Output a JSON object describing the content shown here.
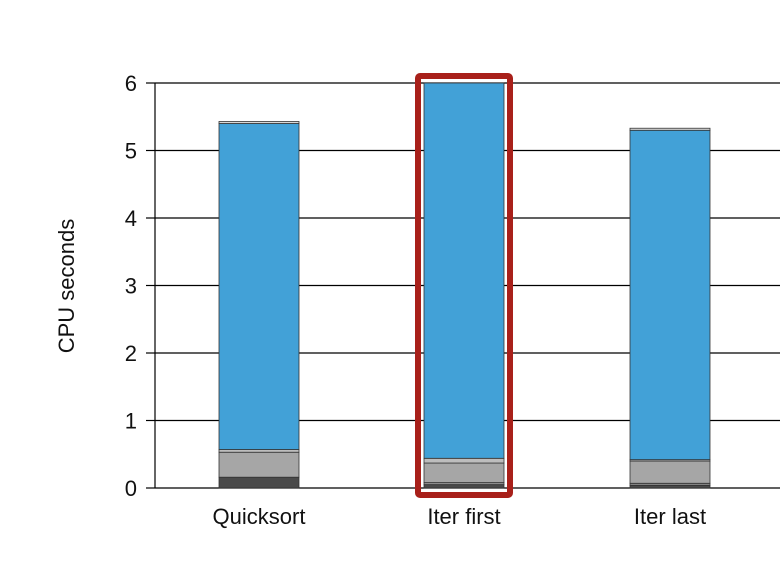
{
  "chart_data": {
    "type": "bar",
    "stacked": true,
    "ylabel": "CPU seconds",
    "xlabel": "",
    "ylim": [
      0,
      6
    ],
    "yticks": [
      "0",
      "1",
      "2",
      "3",
      "4",
      "5",
      "6"
    ],
    "grid": "horizontal",
    "categories": [
      "Quicksort",
      "Iter first",
      "Iter last"
    ],
    "highlighted_category": "Iter first",
    "highlight_color": "#a8201a",
    "series": [
      {
        "color": "#4a4a4a",
        "values": [
          0.16,
          0.05,
          0.04
        ]
      },
      {
        "color": "#8c8c8c",
        "values": [
          0.0,
          0.03,
          0.03
        ]
      },
      {
        "color": "#a6a6a6",
        "values": [
          0.37,
          0.29,
          0.33
        ]
      },
      {
        "color": "#bdbdbd",
        "values": [
          0.04,
          0.07,
          0.02
        ]
      },
      {
        "color": "#42a1d7",
        "values": [
          4.83,
          5.56,
          4.88
        ]
      },
      {
        "color": "#d9d9d9",
        "values": [
          0.03,
          0.0,
          0.03
        ]
      }
    ]
  }
}
